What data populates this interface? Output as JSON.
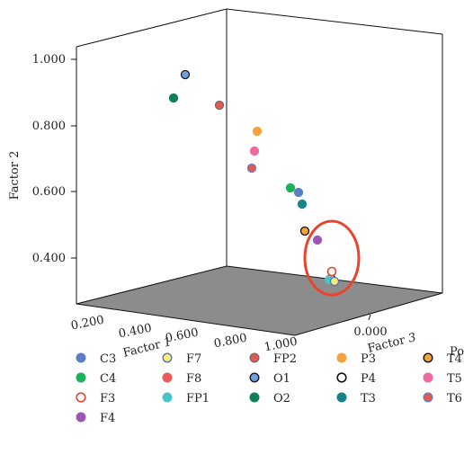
{
  "chart_data": {
    "type": "scatter",
    "dimensions": "3d",
    "axes": {
      "factor1": {
        "label_text": "Factor",
        "label_num": "1",
        "ticks": [
          "0.200",
          "0.400",
          "0.600",
          "0.800",
          "1.000"
        ]
      },
      "factor2": {
        "label": "Factor 2",
        "ticks": [
          "0.400",
          "0.600",
          "0.800",
          "1.000"
        ]
      },
      "factor3": {
        "label_text": "Factor",
        "label_num": "3",
        "ticks": [
          "0.000"
        ]
      }
    },
    "cut_label": "Po",
    "highlight": {
      "shape": "ellipse",
      "color": "#e8432d"
    },
    "series": [
      {
        "name": "C3",
        "fill": "#5b7fc7",
        "edge": "#5b7fc7",
        "hollow": false
      },
      {
        "name": "C4",
        "fill": "#19b25a",
        "edge": "#19b25a",
        "hollow": false
      },
      {
        "name": "F3",
        "fill": "#ffffff",
        "edge": "#e8432d",
        "hollow": true
      },
      {
        "name": "F4",
        "fill": "#9c57b3",
        "edge": "#9c57b3",
        "hollow": false
      },
      {
        "name": "F7",
        "fill": "#f3ee7c",
        "edge": "#5b6fb4",
        "hollow": false
      },
      {
        "name": "F8",
        "fill": "#ee5a5a",
        "edge": "#ee5a5a",
        "hollow": false
      },
      {
        "name": "FP1",
        "fill": "#4cc3c9",
        "edge": "#4cc3c9",
        "hollow": false
      },
      {
        "name": "FP2",
        "fill": "#e8574f",
        "edge": "#6b6b6b",
        "hollow": false
      },
      {
        "name": "O1",
        "fill": "#6f9fd8",
        "edge": "#1a1a1a",
        "hollow": false
      },
      {
        "name": "O2",
        "fill": "#0f7f57",
        "edge": "#0f7f57",
        "hollow": false
      },
      {
        "name": "P3",
        "fill": "#f6a23c",
        "edge": "#f6a23c",
        "hollow": false
      },
      {
        "name": "P4",
        "fill": "#ffffff",
        "edge": "#111111",
        "hollow": true
      },
      {
        "name": "T3",
        "fill": "#18828c",
        "edge": "#18828c",
        "hollow": false
      },
      {
        "name": "T4",
        "fill": "#f6a23c",
        "edge": "#111111",
        "hollow": false
      },
      {
        "name": "T5",
        "fill": "#f06aa0",
        "edge": "#f06aa0",
        "hollow": false
      },
      {
        "name": "T6",
        "fill": "#e8574f",
        "edge": "#5b7fc7",
        "hollow": false
      }
    ]
  }
}
